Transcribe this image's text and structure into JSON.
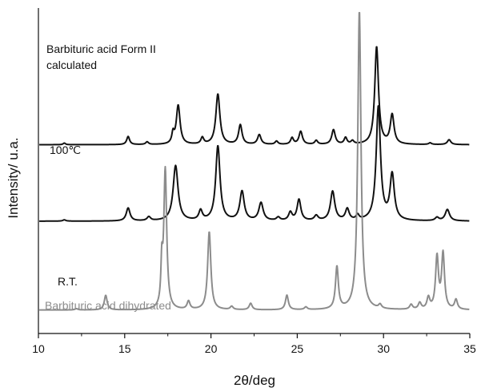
{
  "chart_data": {
    "type": "line",
    "xlabel": "2θ/deg",
    "ylabel": "Intensity/ u.a.",
    "xlim": [
      10,
      35
    ],
    "xticks": [
      10,
      15,
      20,
      25,
      30,
      35
    ],
    "xtick_labels": [
      "10",
      "15",
      "20",
      "25",
      "30",
      "35"
    ],
    "grid": false,
    "legend": "none",
    "series": [
      {
        "name": "Barbituric acid Form II calculated",
        "label_lines": [
          "Barbituric acid Form II",
          "calculated"
        ],
        "color": "#111111",
        "baseline": 0.58,
        "peaks": [
          [
            11.5,
            0.005,
            0.08
          ],
          [
            15.2,
            0.025,
            0.1
          ],
          [
            16.3,
            0.008,
            0.1
          ],
          [
            17.8,
            0.03,
            0.08
          ],
          [
            18.1,
            0.12,
            0.13
          ],
          [
            19.5,
            0.02,
            0.1
          ],
          [
            20.4,
            0.155,
            0.14
          ],
          [
            21.7,
            0.06,
            0.12
          ],
          [
            22.8,
            0.03,
            0.12
          ],
          [
            23.8,
            0.01,
            0.1
          ],
          [
            24.7,
            0.02,
            0.1
          ],
          [
            25.2,
            0.04,
            0.12
          ],
          [
            26.1,
            0.012,
            0.1
          ],
          [
            27.1,
            0.045,
            0.12
          ],
          [
            27.8,
            0.02,
            0.1
          ],
          [
            28.2,
            0.01,
            0.1
          ],
          [
            29.6,
            0.3,
            0.13
          ],
          [
            30.5,
            0.09,
            0.13
          ],
          [
            32.7,
            0.005,
            0.1
          ],
          [
            33.8,
            0.015,
            0.12
          ]
        ]
      },
      {
        "name": "100℃",
        "label_lines": [
          "100℃"
        ],
        "color": "#111111",
        "baseline": 0.345,
        "peaks": [
          [
            11.5,
            0.004,
            0.1
          ],
          [
            15.2,
            0.04,
            0.13
          ],
          [
            16.4,
            0.012,
            0.12
          ],
          [
            17.95,
            0.17,
            0.17
          ],
          [
            19.4,
            0.03,
            0.12
          ],
          [
            20.4,
            0.23,
            0.15
          ],
          [
            21.8,
            0.09,
            0.15
          ],
          [
            22.9,
            0.055,
            0.15
          ],
          [
            23.9,
            0.01,
            0.12
          ],
          [
            24.6,
            0.025,
            0.12
          ],
          [
            25.1,
            0.065,
            0.13
          ],
          [
            26.1,
            0.015,
            0.13
          ],
          [
            27.05,
            0.09,
            0.15
          ],
          [
            27.9,
            0.035,
            0.13
          ],
          [
            28.5,
            0.015,
            0.1
          ],
          [
            29.7,
            0.35,
            0.15
          ],
          [
            30.5,
            0.14,
            0.15
          ],
          [
            33.1,
            0.01,
            0.13
          ],
          [
            33.7,
            0.035,
            0.15
          ]
        ]
      },
      {
        "name": "R.T.",
        "label_lines": [
          "R.T."
        ],
        "color": "#8c8c8c",
        "baseline": 0.072,
        "peaks": [
          [
            12.2,
            0.004,
            0.1
          ],
          [
            13.9,
            0.045,
            0.1
          ],
          [
            17.15,
            0.12,
            0.06
          ],
          [
            17.35,
            0.43,
            0.1
          ],
          [
            18.7,
            0.025,
            0.1
          ],
          [
            19.9,
            0.24,
            0.11
          ],
          [
            21.2,
            0.01,
            0.1
          ],
          [
            22.3,
            0.02,
            0.1
          ],
          [
            24.4,
            0.045,
            0.1
          ],
          [
            25.5,
            0.008,
            0.1
          ],
          [
            27.3,
            0.13,
            0.1
          ],
          [
            28.6,
            0.92,
            0.11
          ],
          [
            29.8,
            0.012,
            0.1
          ],
          [
            31.6,
            0.015,
            0.1
          ],
          [
            32.1,
            0.02,
            0.1
          ],
          [
            32.6,
            0.035,
            0.1
          ],
          [
            33.1,
            0.16,
            0.1
          ],
          [
            33.45,
            0.17,
            0.1
          ],
          [
            34.2,
            0.03,
            0.1
          ]
        ]
      }
    ],
    "annotations": [
      {
        "text": "Barbituric acid dihydrated",
        "color": "#8c8c8c"
      }
    ]
  }
}
